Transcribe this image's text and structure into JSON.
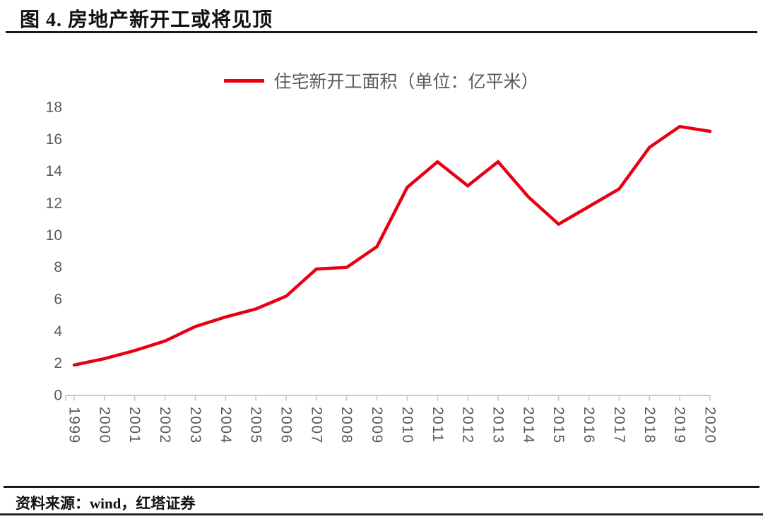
{
  "header": {
    "title": "图 4. 房地产新开工或将见顶"
  },
  "footer": {
    "source": "资料来源：wind，红塔证券"
  },
  "chart_data": {
    "type": "line",
    "title": "图 4. 房地产新开工或将见顶",
    "legend": [
      "住宅新开工面积（单位：亿平米）"
    ],
    "legend_position": "top-center",
    "categories": [
      "1999",
      "2000",
      "2001",
      "2002",
      "2003",
      "2004",
      "2005",
      "2006",
      "2007",
      "2008",
      "2009",
      "2010",
      "2011",
      "2012",
      "2013",
      "2014",
      "2015",
      "2016",
      "2017",
      "2018",
      "2019",
      "2020"
    ],
    "series": [
      {
        "name": "住宅新开工面积（单位：亿平米）",
        "color": "#e60012",
        "values": [
          1.9,
          2.3,
          2.8,
          3.4,
          4.3,
          4.9,
          5.4,
          6.2,
          7.9,
          8.0,
          9.3,
          13.0,
          14.6,
          13.1,
          14.6,
          12.4,
          10.7,
          11.8,
          12.9,
          15.5,
          16.8,
          16.5
        ]
      }
    ],
    "xlabel": "",
    "ylabel": "",
    "ylim": [
      0,
      18
    ],
    "ytick_step": 2,
    "yticks": [
      "0",
      "2",
      "4",
      "6",
      "8",
      "10",
      "12",
      "14",
      "16",
      "18"
    ],
    "grid": false,
    "axis_color": "#c9c9c9",
    "label_color": "#595959"
  }
}
